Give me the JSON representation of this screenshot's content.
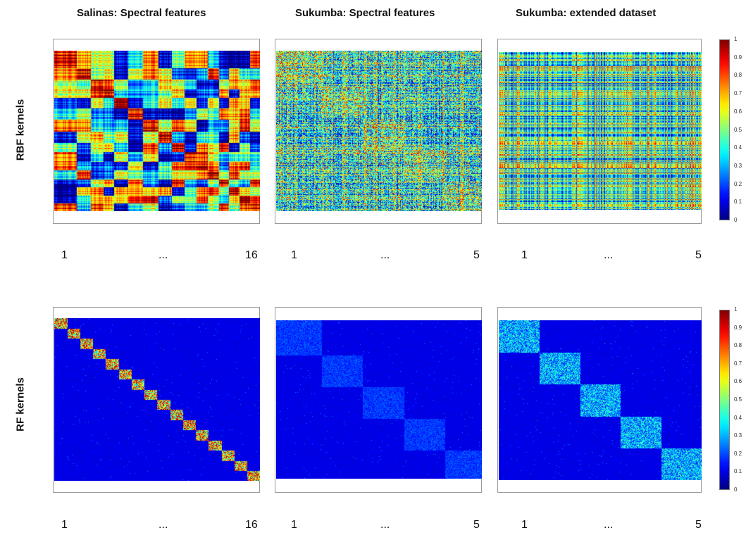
{
  "column_titles": [
    "Salinas: Spectral features",
    "Sukumba: Spectral features",
    "Sukumba: extended dataset"
  ],
  "row_labels": [
    "RBF kernels",
    "RF  kernels"
  ],
  "x_tick_labels": [
    {
      "first": "1",
      "middle": "...",
      "last": "16"
    },
    {
      "first": "1",
      "middle": "...",
      "last": "5"
    },
    {
      "first": "1",
      "middle": "...",
      "last": "5"
    }
  ],
  "colorbar": {
    "min": 0,
    "max": 1,
    "colormap": "jet",
    "ticks": [
      "1",
      "0.9",
      "0.8",
      "0.7",
      "0.6",
      "0.5",
      "0.4",
      "0.3",
      "0.2",
      "0.1",
      "0"
    ]
  },
  "chart_data": [
    {
      "type": "heatmap",
      "title": "Salinas: Spectral features",
      "row": "RBF kernels",
      "kernel": "RBF",
      "classes": 16,
      "value_range": [
        0,
        1
      ],
      "class_sizes": [
        1.3,
        0.8,
        0.75,
        0.6,
        0.8,
        0.85,
        0.9,
        0.8,
        0.7,
        0.7,
        0.65,
        0.65,
        0.6,
        0.6,
        0.6,
        0.6
      ]
    },
    {
      "type": "heatmap",
      "title": "Sukumba: Spectral features",
      "row": "RBF kernels",
      "kernel": "RBF",
      "classes": 5,
      "value_range": [
        0,
        1
      ],
      "class_sizes": [
        1.1,
        1.0,
        1.0,
        1.0,
        0.9
      ]
    },
    {
      "type": "heatmap",
      "title": "Sukumba: extended dataset",
      "row": "RBF kernels",
      "kernel": "RBF",
      "classes": 5,
      "value_range": [
        0,
        1
      ],
      "class_sizes": [
        1.0,
        1.0,
        1.0,
        1.0,
        1.0
      ]
    },
    {
      "type": "heatmap",
      "title": "Salinas: Spectral features",
      "row": "RF  kernels",
      "kernel": "RF",
      "classes": 16,
      "value_range": [
        0,
        1
      ],
      "class_sizes": [
        1,
        1,
        1,
        1,
        1,
        1,
        1,
        1,
        1,
        1,
        1,
        1,
        1,
        1,
        1,
        1
      ]
    },
    {
      "type": "heatmap",
      "title": "Sukumba: Spectral features",
      "row": "RF  kernels",
      "kernel": "RF",
      "classes": 5,
      "value_range": [
        0,
        1
      ],
      "class_sizes": [
        1.1,
        1.0,
        1.0,
        1.0,
        0.9
      ]
    },
    {
      "type": "heatmap",
      "title": "Sukumba: extended dataset",
      "row": "RF  kernels",
      "kernel": "RF",
      "classes": 5,
      "value_range": [
        0,
        1
      ],
      "class_sizes": [
        1.0,
        1.0,
        1.0,
        1.0,
        1.0
      ]
    }
  ]
}
